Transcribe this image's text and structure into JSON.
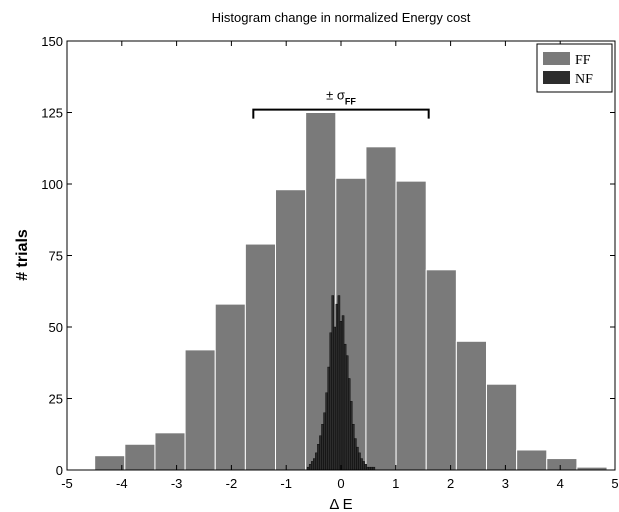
{
  "chart_data": {
    "type": "bar",
    "title": "Histogram change in normalized Energy cost",
    "xlabel": "Δ E",
    "ylabel": "# trials",
    "xlim": [
      -5,
      5
    ],
    "ylim": [
      0,
      150
    ],
    "xticks": [
      "-5",
      "-4",
      "-3",
      "-2",
      "-1",
      "0",
      "1",
      "2",
      "3",
      "4",
      "5"
    ],
    "yticks": [
      "0",
      "25",
      "50",
      "75",
      "100",
      "125",
      "150"
    ],
    "legend_position": "top-right",
    "annotation": {
      "text": "± σ",
      "subscript": "FF",
      "x_from": -1.6,
      "x_to": 1.6,
      "y": 126
    },
    "series": [
      {
        "name": "FF",
        "color": "#7a7a7a",
        "bin_width": 0.55,
        "bin_centers": [
          -4.22,
          -3.67,
          -3.12,
          -2.57,
          -2.02,
          -1.47,
          -0.92,
          -0.37,
          0.18,
          0.73,
          1.28,
          1.83,
          2.38,
          2.93,
          3.48,
          4.03,
          4.58
        ],
        "values": [
          5,
          9,
          13,
          42,
          58,
          79,
          98,
          125,
          102,
          113,
          101,
          70,
          45,
          30,
          7,
          4,
          1
        ]
      },
      {
        "name": "NF",
        "color": "#2d2d2d",
        "bin_width": 0.0375,
        "bin_centers": [
          -0.6,
          -0.5625,
          -0.525,
          -0.4875,
          -0.45,
          -0.4125,
          -0.375,
          -0.3375,
          -0.3,
          -0.2625,
          -0.225,
          -0.1875,
          -0.15,
          -0.1125,
          -0.075,
          -0.0375,
          0.0,
          0.0375,
          0.075,
          0.1125,
          0.15,
          0.1875,
          0.225,
          0.2625,
          0.3,
          0.3375,
          0.375,
          0.4125,
          0.45,
          0.4875,
          0.525,
          0.5625,
          0.6
        ],
        "values": [
          1,
          2,
          3,
          4,
          6,
          9,
          12,
          16,
          20,
          27,
          36,
          48,
          61,
          50,
          58,
          61,
          52,
          54,
          44,
          40,
          32,
          24,
          16,
          11,
          8,
          6,
          4,
          3,
          2,
          1,
          1,
          1,
          1
        ]
      }
    ]
  }
}
